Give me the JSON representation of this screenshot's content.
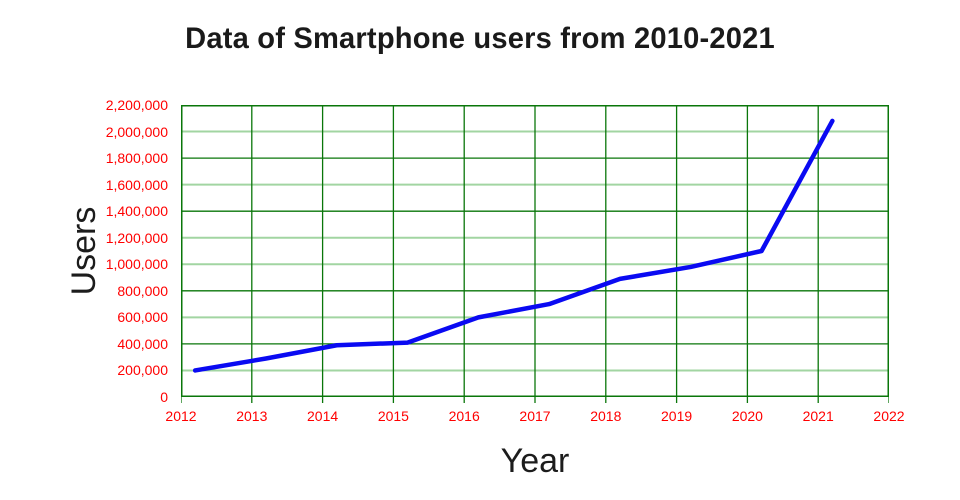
{
  "chart_title": "Data of Smartphone users from 2010-2021",
  "chart_data": {
    "type": "line",
    "title": "Data of Smartphone users from 2010-2021",
    "xlabel": "Year",
    "ylabel": "Users",
    "xlim": [
      2012,
      2022
    ],
    "ylim": [
      0,
      2200000
    ],
    "grid": true,
    "legend_position": "none",
    "x_tick_labels": [
      "2012",
      "2013",
      "2014",
      "2015",
      "2016",
      "2017",
      "2018",
      "2019",
      "2020",
      "2021",
      "2022"
    ],
    "y_tick_labels": [
      "2,200,000",
      "2,000,000",
      "1,800,000",
      "1,600,000",
      "1,400,000",
      "1,200,000",
      "1,000,000",
      "800,000",
      "600,000",
      "400,000",
      "200,000",
      "0"
    ],
    "y_tick_step": 200000,
    "series": [
      {
        "name": "Smartphone users",
        "x": [
          2012,
          2013,
          2014,
          2015,
          2016,
          2017,
          2018,
          2019,
          2020,
          2021
        ],
        "y": [
          200000,
          290000,
          390000,
          410000,
          600000,
          700000,
          890000,
          980000,
          1100000,
          2080000
        ]
      }
    ],
    "x_point_offset": 0.2,
    "minor_gridline_values": [
      200000,
      600000,
      1000000,
      1200000,
      1600000,
      2000000
    ],
    "colors": {
      "line": "#0a0af2",
      "grid_major": "#0a760a",
      "grid_minor": "#a2d5a2",
      "tick_labels": "#ff0000",
      "axis_titles": "#1c1c1c",
      "title": "#1a1a1a",
      "background": "#ffffff"
    }
  }
}
